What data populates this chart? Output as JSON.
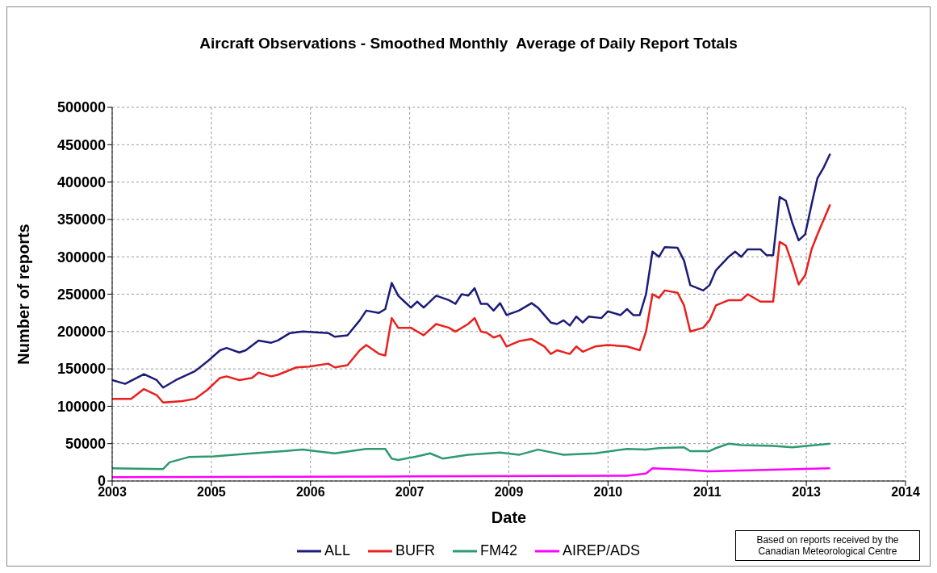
{
  "chart_data": {
    "type": "line",
    "title": "Aircraft Observations - Smoothed Monthly  Average of Daily Report Totals",
    "xlabel": "Date",
    "ylabel": "Number of reports",
    "annotations": [
      "Based on reports received by the Canadian Meteorological Centre"
    ],
    "xlim": [
      "2003-12-01",
      "2014-04-27"
    ],
    "xticks": [
      {
        "value": "2003-12-01",
        "label": "2003"
      },
      {
        "value": "2005-03-20",
        "label": "2005"
      },
      {
        "value": "2006-07-08",
        "label": "2006"
      },
      {
        "value": "2007-10-26",
        "label": "2007"
      },
      {
        "value": "2009-02-12",
        "label": "2009"
      },
      {
        "value": "2010-06-02",
        "label": "2010"
      },
      {
        "value": "2011-09-20",
        "label": "2011"
      },
      {
        "value": "2013-01-07",
        "label": "2013"
      },
      {
        "value": "2014-04-27",
        "label": "2014"
      }
    ],
    "ylim": [
      0,
      500000
    ],
    "yticks": [
      0,
      50000,
      100000,
      150000,
      200000,
      250000,
      300000,
      350000,
      400000,
      450000,
      500000
    ],
    "grid": true,
    "legend": "bottom",
    "marker": "none",
    "line_style": "solid",
    "series": [
      {
        "name": "ALL",
        "color": "#1c1c78",
        "x": [
          "2003-12",
          "2004-02",
          "2004-05",
          "2004-07",
          "2004-08",
          "2004-10",
          "2005-01",
          "2005-03",
          "2005-05",
          "2005-06",
          "2005-08",
          "2005-09",
          "2005-11",
          "2006-01",
          "2006-02",
          "2006-04",
          "2006-06",
          "2006-10",
          "2006-11",
          "2007-01",
          "2007-03",
          "2007-04",
          "2007-06",
          "2007-07",
          "2007-08",
          "2007-09",
          "2007-10",
          "2007-11",
          "2007-12",
          "2008-01",
          "2008-03",
          "2008-05",
          "2008-06",
          "2008-07",
          "2008-08",
          "2008-09",
          "2008-10",
          "2008-11",
          "2008-12",
          "2009-01",
          "2009-02",
          "2009-04",
          "2009-06",
          "2009-07",
          "2009-08",
          "2009-09",
          "2009-10",
          "2009-11",
          "2009-12",
          "2010-01",
          "2010-02",
          "2010-03",
          "2010-05",
          "2010-06",
          "2010-08",
          "2010-09",
          "2010-10",
          "2010-11",
          "2010-12",
          "2011-01",
          "2011-02",
          "2011-03",
          "2011-05",
          "2011-06",
          "2011-07",
          "2011-09",
          "2011-10",
          "2011-11",
          "2012-01",
          "2012-02",
          "2012-03",
          "2012-04",
          "2012-06",
          "2012-07",
          "2012-08",
          "2012-09",
          "2012-10",
          "2012-11",
          "2012-12",
          "2013-01",
          "2013-02",
          "2013-03",
          "2013-04",
          "2013-05"
        ],
        "values": [
          135000,
          130000,
          143000,
          135000,
          125000,
          135000,
          147000,
          160000,
          175000,
          178000,
          172000,
          175000,
          188000,
          185000,
          188000,
          198000,
          200000,
          198000,
          193000,
          195000,
          215000,
          228000,
          225000,
          230000,
          265000,
          248000,
          240000,
          232000,
          240000,
          232000,
          248000,
          242000,
          237000,
          250000,
          248000,
          258000,
          237000,
          237000,
          228000,
          238000,
          222000,
          228000,
          238000,
          232000,
          222000,
          212000,
          210000,
          215000,
          208000,
          220000,
          212000,
          220000,
          218000,
          227000,
          222000,
          230000,
          222000,
          222000,
          250000,
          307000,
          300000,
          313000,
          312000,
          295000,
          262000,
          255000,
          262000,
          282000,
          300000,
          307000,
          300000,
          310000,
          310000,
          302000,
          302000,
          380000,
          375000,
          345000,
          322000,
          330000,
          370000,
          405000,
          420000,
          438000
        ]
      },
      {
        "name": "BUFR",
        "color": "#e8201e",
        "x": [
          "2003-12",
          "2004-03",
          "2004-05",
          "2004-07",
          "2004-08",
          "2004-11",
          "2005-01",
          "2005-03",
          "2005-05",
          "2005-06",
          "2005-08",
          "2005-10",
          "2005-11",
          "2006-01",
          "2006-02",
          "2006-05",
          "2006-07",
          "2006-10",
          "2006-11",
          "2007-01",
          "2007-03",
          "2007-04",
          "2007-06",
          "2007-07",
          "2007-08",
          "2007-09",
          "2007-11",
          "2007-12",
          "2008-01",
          "2008-03",
          "2008-05",
          "2008-06",
          "2008-08",
          "2008-09",
          "2008-10",
          "2008-11",
          "2008-12",
          "2009-01",
          "2009-02",
          "2009-04",
          "2009-06",
          "2009-08",
          "2009-09",
          "2009-10",
          "2009-12",
          "2010-01",
          "2010-02",
          "2010-04",
          "2010-06",
          "2010-09",
          "2010-11",
          "2010-12",
          "2011-01",
          "2011-02",
          "2011-03",
          "2011-05",
          "2011-06",
          "2011-07",
          "2011-09",
          "2011-10",
          "2011-11",
          "2012-01",
          "2012-03",
          "2012-04",
          "2012-06",
          "2012-08",
          "2012-09",
          "2012-10",
          "2012-11",
          "2012-12",
          "2013-01",
          "2013-02",
          "2013-03",
          "2013-05"
        ],
        "values": [
          110000,
          110000,
          123000,
          115000,
          105000,
          107000,
          110000,
          122000,
          138000,
          140000,
          135000,
          138000,
          145000,
          140000,
          142000,
          152000,
          153000,
          157000,
          152000,
          155000,
          175000,
          182000,
          170000,
          168000,
          218000,
          205000,
          205000,
          200000,
          195000,
          210000,
          205000,
          200000,
          210000,
          218000,
          200000,
          198000,
          192000,
          195000,
          180000,
          187000,
          190000,
          180000,
          170000,
          175000,
          170000,
          180000,
          173000,
          180000,
          182000,
          180000,
          175000,
          200000,
          250000,
          245000,
          255000,
          252000,
          235000,
          200000,
          205000,
          215000,
          235000,
          242000,
          242000,
          250000,
          240000,
          240000,
          320000,
          315000,
          290000,
          263000,
          275000,
          310000,
          330000,
          370000
        ]
      },
      {
        "name": "FM42",
        "color": "#2e9a6e",
        "x": [
          "2003-12",
          "2004-08",
          "2004-09",
          "2004-12",
          "2005-04",
          "2005-10",
          "2006-03",
          "2006-06",
          "2006-08",
          "2006-11",
          "2007-04",
          "2007-07",
          "2007-08",
          "2007-09",
          "2007-12",
          "2008-02",
          "2008-04",
          "2008-08",
          "2009-01",
          "2009-04",
          "2009-07",
          "2009-11",
          "2010-04",
          "2010-09",
          "2010-12",
          "2011-02",
          "2011-06",
          "2011-07",
          "2011-10",
          "2011-11",
          "2012-01",
          "2012-03",
          "2012-08",
          "2012-11",
          "2013-05"
        ],
        "values": [
          17000,
          16000,
          25000,
          32000,
          33000,
          37000,
          40000,
          42000,
          40000,
          37000,
          43000,
          43000,
          30000,
          28000,
          33000,
          37000,
          30000,
          35000,
          38000,
          35000,
          42000,
          35000,
          37000,
          43000,
          42000,
          44000,
          45000,
          40000,
          40000,
          44000,
          50000,
          48000,
          47000,
          45000,
          50000
        ]
      },
      {
        "name": "AIREP/ADS",
        "color": "#ff00ff",
        "x": [
          "2003-12",
          "2007-07",
          "2010-09",
          "2010-12",
          "2011-01",
          "2011-06",
          "2011-10",
          "2012-03",
          "2012-08",
          "2013-05"
        ],
        "values": [
          5000,
          6000,
          7000,
          10000,
          17000,
          15000,
          13000,
          14000,
          15000,
          17000
        ]
      }
    ]
  }
}
